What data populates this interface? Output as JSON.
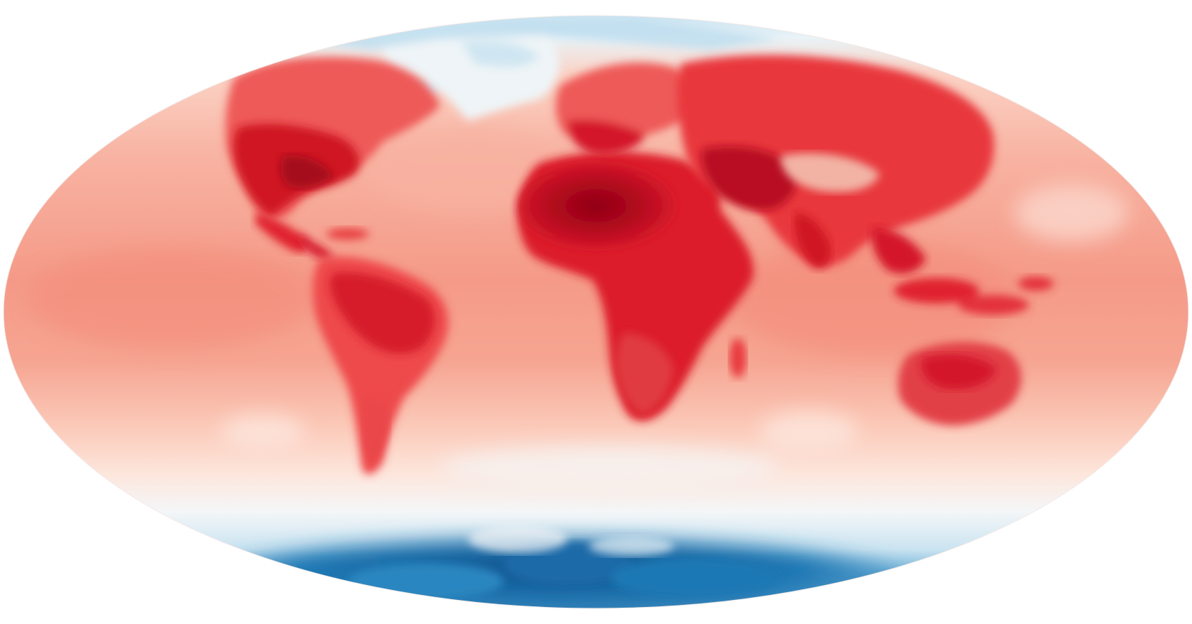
{
  "map": {
    "projection": "mollweide",
    "background_color": "#ffffff",
    "palette": {
      "ocean_warm": "#f6a08e",
      "ocean_mild": "#fbc9b8",
      "ocean_cool": "#fde7dd",
      "neutral": "#f7f3f0",
      "land_hot": "#e0202e",
      "land_hotter": "#c8101f",
      "land_hottest": "#8f0015",
      "land_warm": "#ee5a58",
      "cold_light": "#cfe6f2",
      "cold_mid": "#7fbcdb",
      "cold_deep": "#1f78b4",
      "cold_darkest": "#0d4f8a"
    },
    "icon": "global-temperature-map"
  }
}
